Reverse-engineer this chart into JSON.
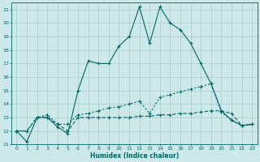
{
  "xlabel": "Humidex (Indice chaleur)",
  "background_color": "#cce8e8",
  "grid_color": "#aacccc",
  "line_color": "#006666",
  "xlim": [
    -0.5,
    23.5
  ],
  "ylim": [
    11,
    21.5
  ],
  "yticks": [
    11,
    12,
    13,
    14,
    15,
    16,
    17,
    18,
    19,
    20,
    21
  ],
  "xticks": [
    0,
    1,
    2,
    3,
    4,
    5,
    6,
    7,
    8,
    9,
    10,
    11,
    12,
    13,
    14,
    15,
    16,
    17,
    18,
    19,
    20,
    21,
    22,
    23
  ],
  "line1_x": [
    0,
    1,
    2,
    3,
    4,
    5,
    6,
    7,
    8,
    9,
    10,
    11,
    12,
    13,
    14,
    15,
    16,
    17,
    18,
    19,
    20,
    21,
    22,
    23
  ],
  "line1_y": [
    12.0,
    11.2,
    13.0,
    13.0,
    12.3,
    11.8,
    15.0,
    17.2,
    17.0,
    17.0,
    18.3,
    19.0,
    21.2,
    18.5,
    21.2,
    20.0,
    19.5,
    18.5,
    17.0,
    15.5,
    13.5,
    12.8,
    12.4,
    12.5
  ],
  "line2_x": [
    0,
    1,
    2,
    3,
    4,
    5,
    6,
    7,
    8,
    9,
    10,
    11,
    12,
    13,
    14,
    15,
    16,
    17,
    18,
    19,
    20,
    21,
    22,
    23
  ],
  "line2_y": [
    12.0,
    12.0,
    13.0,
    13.2,
    12.5,
    12.5,
    13.2,
    13.3,
    13.5,
    13.7,
    13.8,
    14.0,
    14.2,
    13.3,
    14.5,
    14.7,
    14.9,
    15.1,
    15.3,
    15.5,
    13.4,
    12.8,
    12.4,
    12.5
  ],
  "line3_x": [
    0,
    1,
    2,
    3,
    4,
    5,
    6,
    7,
    8,
    9,
    10,
    11,
    12,
    13,
    14,
    15,
    16,
    17,
    18,
    19,
    20,
    21,
    22,
    23
  ],
  "line3_y": [
    12.0,
    12.0,
    13.0,
    13.0,
    12.5,
    12.0,
    13.0,
    13.0,
    13.0,
    13.0,
    13.0,
    13.0,
    13.1,
    13.1,
    13.2,
    13.2,
    13.3,
    13.3,
    13.4,
    13.5,
    13.5,
    13.3,
    12.4,
    12.5
  ],
  "tick_fontsize": 4.5,
  "xlabel_fontsize": 5.5
}
